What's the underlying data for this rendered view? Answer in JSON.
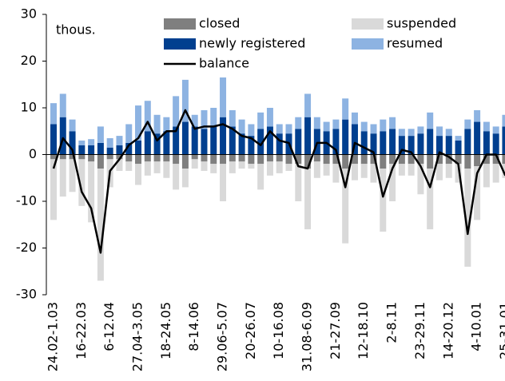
{
  "chart_data": {
    "type": "bar",
    "annotation": "thous.",
    "categories": [
      "24.02-1.03",
      null,
      null,
      "16-22.03",
      null,
      null,
      "6-12.04",
      null,
      null,
      "27.04-3.05",
      null,
      null,
      "18-24.05",
      null,
      null,
      "8-14.06",
      null,
      null,
      "29.06-5.07",
      null,
      null,
      "20-26.07",
      null,
      null,
      "10-16.08",
      null,
      null,
      "31.08-6.09",
      null,
      null,
      "21-27.09",
      null,
      null,
      "12-18.10",
      null,
      null,
      "2-8.11",
      null,
      null,
      "23-29.11",
      null,
      null,
      "14-20.12",
      null,
      null,
      "4-10.01",
      null,
      null,
      "25-31.01"
    ],
    "series": [
      {
        "name": "closed",
        "color": "#7f7f7f",
        "values": [
          -1,
          -1,
          -1,
          -1,
          -1.5,
          -3,
          -1,
          -1,
          -1.5,
          -2,
          -1.5,
          -1.5,
          -1.5,
          -2,
          -3,
          -1,
          -1.5,
          -2,
          -2,
          -1.5,
          -1.5,
          -2,
          -2,
          -1.5,
          -1.5,
          -2,
          -2,
          -3,
          -1.5,
          -2,
          -2,
          -3,
          -2,
          -2,
          -2,
          -3,
          -2,
          -2,
          -2,
          -2,
          -3,
          -2,
          -2,
          -2,
          -3,
          -2.5,
          -2,
          -2,
          -2
        ]
      },
      {
        "name": "suspended",
        "color": "#d9d9d9",
        "values": [
          -13,
          -8,
          -7,
          -10,
          -13,
          -24,
          -6,
          -2.5,
          -2,
          -4.5,
          -3,
          -2.5,
          -3.5,
          -5.5,
          -4,
          -2,
          -2,
          -2,
          -8,
          -2.5,
          -1.5,
          -1,
          -5.5,
          -3,
          -2.5,
          -1.5,
          -8,
          -13,
          -3.5,
          -2.5,
          -4,
          -16,
          -3.5,
          -3,
          -4,
          -13.5,
          -8,
          -2.5,
          -2.5,
          -6.5,
          -13,
          -3.5,
          -3,
          -4,
          -21,
          -11.5,
          -5,
          -4,
          -3
        ]
      },
      {
        "name": "newly registered",
        "color": "#003f8f",
        "values": [
          6.5,
          8,
          5,
          2,
          2,
          2.5,
          1.5,
          2,
          2.5,
          3,
          5,
          4.5,
          5,
          6,
          7,
          6,
          5.5,
          6,
          8,
          6,
          4.5,
          4,
          5.5,
          6,
          4.5,
          4.5,
          5.5,
          8,
          5.5,
          5,
          5.5,
          7.5,
          6.5,
          5,
          4.5,
          5,
          5.5,
          4,
          4,
          4.5,
          5.5,
          4,
          4,
          3,
          5.5,
          7,
          5,
          4.5,
          6
        ]
      },
      {
        "name": "resumed",
        "color": "#8db3e2",
        "values": [
          4.5,
          5,
          2.5,
          1,
          1.3,
          3.5,
          2,
          2,
          4,
          7.5,
          6.5,
          4,
          3,
          6.5,
          9,
          2.5,
          4,
          4,
          8.5,
          3.5,
          3,
          2.5,
          3.5,
          4,
          2,
          2,
          2.5,
          5,
          2.5,
          2,
          2,
          4.5,
          2.5,
          2,
          2,
          2.5,
          2.5,
          1.5,
          1.5,
          1.5,
          3.5,
          2,
          1.5,
          1,
          2,
          2.5,
          2,
          1.5,
          2.5
        ]
      },
      {
        "name": "balance",
        "type": "line",
        "color": "#000000",
        "values": [
          -3,
          3.5,
          1,
          -8,
          -11.5,
          -21,
          -3.5,
          -1,
          2,
          3.5,
          7,
          3,
          5,
          5,
          9.5,
          5.5,
          6,
          6,
          6.5,
          5.5,
          4,
          3.5,
          2,
          5,
          3,
          2.5,
          -2.5,
          -3,
          2.5,
          2.5,
          1,
          -7,
          2.5,
          1.5,
          0.5,
          -9,
          -3,
          1,
          0.5,
          -2.5,
          -7,
          0.5,
          -0.5,
          -2,
          -17,
          -4,
          0,
          0,
          -4.5
        ]
      }
    ],
    "ylim": [
      -30,
      30
    ],
    "yticks": [
      -30,
      -20,
      -10,
      0,
      10,
      20,
      30
    ]
  }
}
